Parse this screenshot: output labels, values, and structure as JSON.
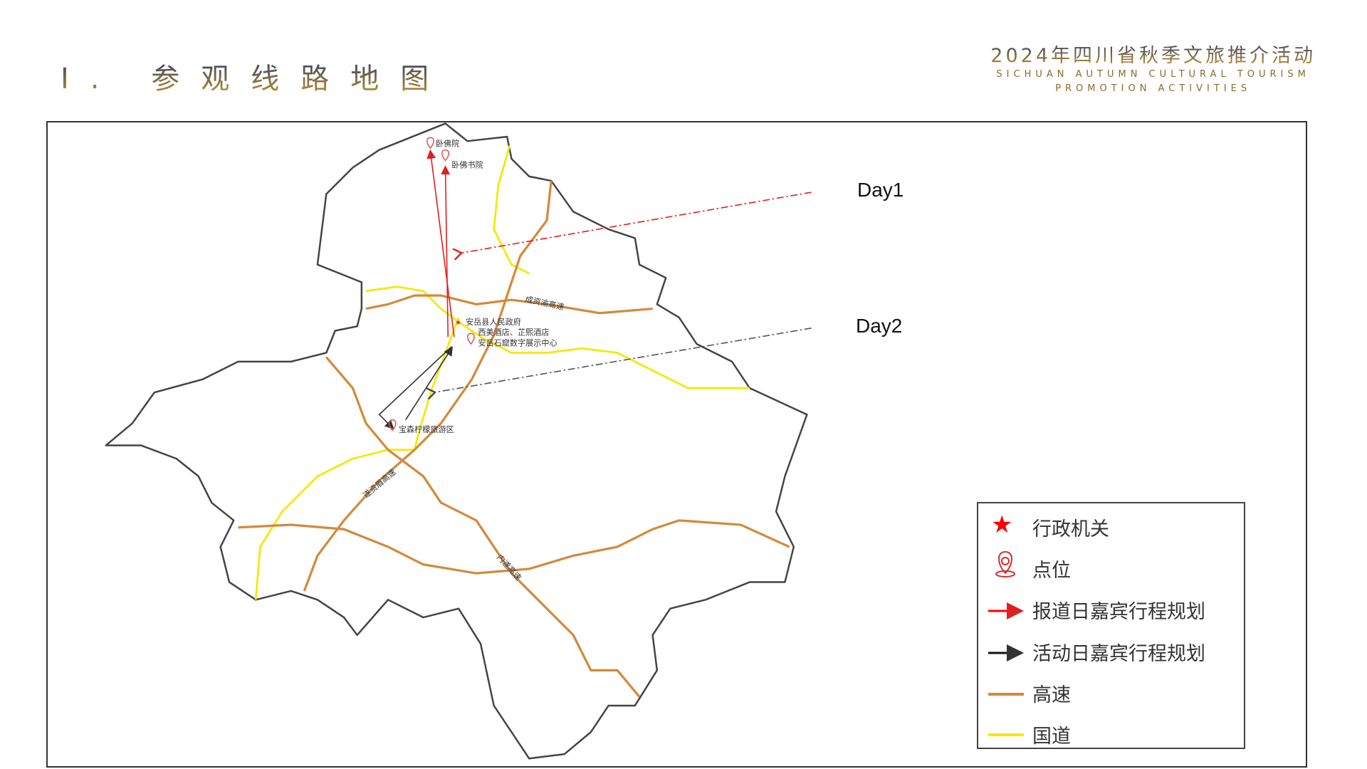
{
  "header": {
    "section_number": "I.",
    "title": "参观线路地图",
    "brand_cn": "2024年四川省秋季文旅推介活动",
    "brand_en_line1": "SICHUAN AUTUMN CULTURAL TOURISM",
    "brand_en_line2": "PROMOTION ACTIVITIES"
  },
  "map": {
    "day_labels": [
      "Day1",
      "Day2"
    ],
    "places": {
      "wofoyuan": "卧佛院",
      "wofo_academy": "卧佛书院",
      "government": "安岳县人民政府",
      "hotels": "西美酒店、芷熙酒店",
      "digital_center": "安岳石窟数字展示中心",
      "lemon_area": "宝森柠檬旅游区"
    },
    "highways": [
      "成资渝高速",
      "遂资眉高速",
      "内遂高速"
    ],
    "colors": {
      "highway": "#d4893a",
      "national_road": "#f5e800",
      "day1_route": "#e02020",
      "day2_route": "#222222",
      "boundary": "#444444"
    }
  },
  "legend": {
    "items": [
      {
        "icon": "star-icon",
        "label": "行政机关"
      },
      {
        "icon": "location-pin-icon",
        "label": "点位"
      },
      {
        "icon": "red-arrow-icon",
        "label": "报道日嘉宾行程规划"
      },
      {
        "icon": "black-arrow-icon",
        "label": "活动日嘉宾行程规划"
      },
      {
        "icon": "orange-line-icon",
        "label": "高速"
      },
      {
        "icon": "yellow-line-icon",
        "label": "国道"
      }
    ]
  }
}
